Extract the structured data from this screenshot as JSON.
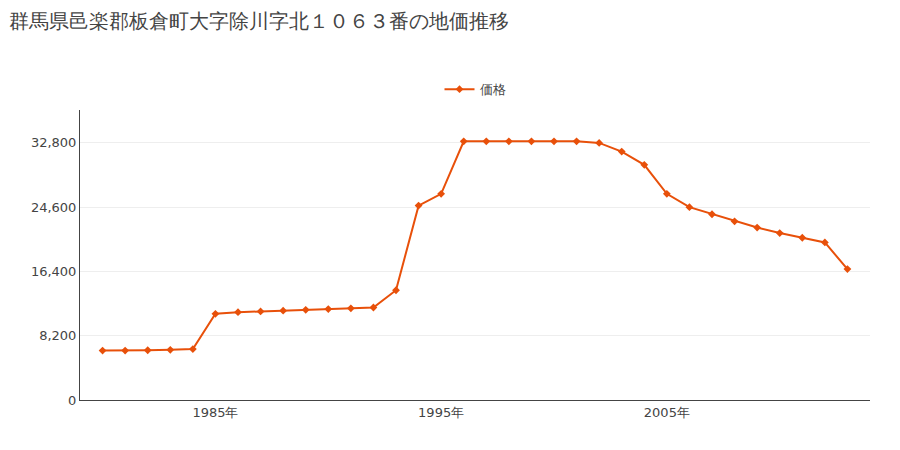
{
  "chart_data": {
    "type": "line",
    "title": "群馬県邑楽郡板倉町大字除川字北１０６３番の地価推移",
    "x": [
      1980,
      1981,
      1982,
      1983,
      1984,
      1985,
      1986,
      1987,
      1988,
      1989,
      1990,
      1991,
      1992,
      1993,
      1994,
      1995,
      1996,
      1997,
      1998,
      1999,
      2000,
      2001,
      2002,
      2003,
      2004,
      2005,
      2006,
      2007,
      2008,
      2009,
      2010,
      2011,
      2012,
      2013
    ],
    "series": [
      {
        "name": "価格",
        "color": "#E8500A",
        "marker": "diamond",
        "values": [
          6300,
          6300,
          6350,
          6400,
          6500,
          11000,
          11200,
          11300,
          11400,
          11500,
          11600,
          11700,
          11800,
          14000,
          24800,
          26300,
          33000,
          33000,
          33000,
          33000,
          33000,
          33000,
          32800,
          31700,
          30000,
          26300,
          24600,
          23700,
          22800,
          22000,
          21300,
          20700,
          20100,
          16700
        ]
      }
    ],
    "xlim": [
      1979,
      2014
    ],
    "xticks": [
      {
        "value": 1985,
        "label": "1985年"
      },
      {
        "value": 1995,
        "label": "1995年"
      },
      {
        "value": 2005,
        "label": "2005年"
      }
    ],
    "ylim": [
      0,
      37000
    ],
    "yticks": [
      0,
      {
        "value": 8200,
        "label": "8,200"
      },
      {
        "value": 16400,
        "label": "16,400"
      },
      {
        "value": 24600,
        "label": "24,600"
      },
      {
        "value": 32800,
        "label": "32,800"
      }
    ],
    "grid": true,
    "legend": "top"
  }
}
